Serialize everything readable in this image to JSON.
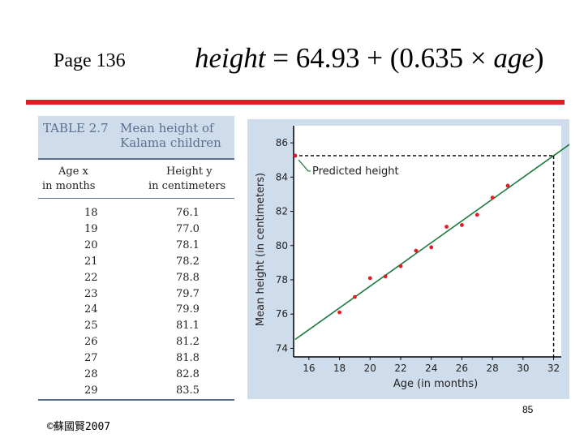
{
  "page_label": "Page 136",
  "formula": {
    "lhs": "height",
    "equals": " = 64.93 + (0.635 × ",
    "var": "age",
    "close": ")"
  },
  "table": {
    "label": "TABLE 2.7",
    "title_line1": "Mean height of",
    "title_line2": "Kalama children",
    "col1_line1": "Age x",
    "col1_line2": "in months",
    "col2_line1": "Height y",
    "col2_line2": "in centimeters",
    "rows": [
      {
        "age": "18",
        "height": "76.1"
      },
      {
        "age": "19",
        "height": "77.0"
      },
      {
        "age": "20",
        "height": "78.1"
      },
      {
        "age": "21",
        "height": "78.2"
      },
      {
        "age": "22",
        "height": "78.8"
      },
      {
        "age": "23",
        "height": "79.7"
      },
      {
        "age": "24",
        "height": "79.9"
      },
      {
        "age": "25",
        "height": "81.1"
      },
      {
        "age": "26",
        "height": "81.2"
      },
      {
        "age": "27",
        "height": "81.8"
      },
      {
        "age": "28",
        "height": "82.8"
      },
      {
        "age": "29",
        "height": "83.5"
      }
    ]
  },
  "chart_data": {
    "type": "scatter",
    "xlabel": "Age (in months)",
    "ylabel": "Mean height (in centimeters)",
    "xlim": [
      15,
      32.5
    ],
    "ylim": [
      73.5,
      87
    ],
    "xticks": [
      16,
      18,
      20,
      22,
      24,
      26,
      28,
      30,
      32
    ],
    "yticks": [
      74,
      76,
      78,
      80,
      82,
      84,
      86
    ],
    "points": [
      {
        "x": 18,
        "y": 76.1
      },
      {
        "x": 19,
        "y": 77.0
      },
      {
        "x": 20,
        "y": 78.1
      },
      {
        "x": 21,
        "y": 78.2
      },
      {
        "x": 22,
        "y": 78.8
      },
      {
        "x": 23,
        "y": 79.7
      },
      {
        "x": 24,
        "y": 79.9
      },
      {
        "x": 25,
        "y": 81.1
      },
      {
        "x": 26,
        "y": 81.2
      },
      {
        "x": 27,
        "y": 81.8
      },
      {
        "x": 28,
        "y": 82.8
      },
      {
        "x": 29,
        "y": 83.5
      }
    ],
    "regression": {
      "intercept": 64.93,
      "slope": 0.635
    },
    "predicted_point": {
      "x": 32,
      "y": 85.25
    },
    "annotation": "Predicted height",
    "grid": false,
    "point_color": "#e31b23",
    "line_color": "#1a7a3c"
  },
  "page_number": "85",
  "copyright": "©蘇國賢2007",
  "colors": {
    "accent_red": "#e31b23",
    "panel_blue": "#cfdcec",
    "header_text": "#5a6f8c"
  }
}
